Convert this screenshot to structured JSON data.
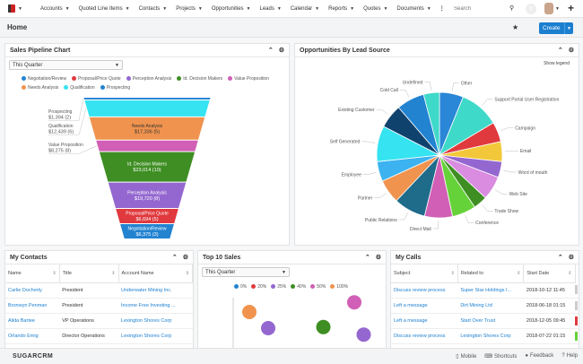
{
  "nav": {
    "items": [
      "Accounts",
      "Quoted Line Items",
      "Contacts",
      "Projects",
      "Opportunities",
      "Leads",
      "Calendar",
      "Reports",
      "Quotes",
      "Documents"
    ],
    "more": "⋮",
    "search_placeholder": "Search",
    "notifications": "0",
    "add": "+"
  },
  "header": {
    "title": "Home",
    "create": "Create"
  },
  "pipeline": {
    "title": "Sales Pipeline Chart",
    "filter": "This Quarter",
    "legend": [
      {
        "label": "Negotiation/Review",
        "color": "#2283d1"
      },
      {
        "label": "Proposal/Price Quote",
        "color": "#e0393e"
      },
      {
        "label": "Perception Analysis",
        "color": "#9467d0"
      },
      {
        "label": "Id. Decision Makers",
        "color": "#3e8e23"
      },
      {
        "label": "Value Proposition",
        "color": "#d05fb5"
      },
      {
        "label": "Needs Analysis",
        "color": "#f0934e"
      },
      {
        "label": "Qualification",
        "color": "#36e3f0"
      },
      {
        "label": "Prospecting",
        "color": "#2283d1"
      }
    ]
  },
  "opps": {
    "title": "Opportunities By Lead Source",
    "show_legend": "Show legend"
  },
  "chart_data": [
    {
      "type": "funnel",
      "stages": [
        {
          "label": "Prospecting",
          "amount": "$1,394 (2)",
          "value": 1394,
          "count": 2,
          "color": "#2a86d6",
          "outside": true
        },
        {
          "label": "Qualification",
          "amount": "$12,439 (6)",
          "value": 12439,
          "count": 6,
          "color": "#36e3f0",
          "outside": true
        },
        {
          "label": "Needs Analysis",
          "amount": "$17,336 (5)",
          "value": 17336,
          "count": 5,
          "color": "#f0934e",
          "outside": false
        },
        {
          "label": "Value Proposition",
          "amount": "$8,275 (8)",
          "value": 8275,
          "count": 8,
          "color": "#d05fb5",
          "outside": true
        },
        {
          "label": "Id. Decision Makers",
          "amount": "$23,014 (10)",
          "value": 23014,
          "count": 10,
          "color": "#3e8e23",
          "outside": false
        },
        {
          "label": "Perception Analysis",
          "amount": "$19,720 (8)",
          "value": 19720,
          "count": 8,
          "color": "#9467d0",
          "outside": false
        },
        {
          "label": "Proposal/Price Quote",
          "amount": "$6,694 (5)",
          "value": 6694,
          "count": 5,
          "color": "#e0393e",
          "outside": false
        },
        {
          "label": "Negotiation/Review",
          "amount": "$6,375 (3)",
          "value": 6375,
          "count": 3,
          "color": "#2283d1",
          "outside": false
        }
      ]
    },
    {
      "type": "pie",
      "slices": [
        {
          "label": "Other",
          "value": 6,
          "color": "#2a86d6"
        },
        {
          "label": "Support Portal User Registration",
          "value": 10,
          "color": "#3fd9c9"
        },
        {
          "label": "Campaign",
          "value": 5,
          "color": "#e0393e"
        },
        {
          "label": "Email",
          "value": 5,
          "color": "#f2c83a"
        },
        {
          "label": "Word of mouth",
          "value": 4,
          "color": "#9467d0"
        },
        {
          "label": "Web Site",
          "value": 6,
          "color": "#d98ce0"
        },
        {
          "label": "Trade Show",
          "value": 3.5,
          "color": "#3e8e23"
        },
        {
          "label": "Conference",
          "value": 6,
          "color": "#66d23a"
        },
        {
          "label": "Direct Mail",
          "value": 7,
          "color": "#d05fb5"
        },
        {
          "label": "Public Relations",
          "value": 8,
          "color": "#1f6b8a"
        },
        {
          "label": "Partner",
          "value": 6,
          "color": "#f0934e"
        },
        {
          "label": "Employee",
          "value": 5,
          "color": "#3cb3f0"
        },
        {
          "label": "Self Generated",
          "value": 9,
          "color": "#36e3f0"
        },
        {
          "label": "Existing Customer",
          "value": 6,
          "color": "#10426e"
        },
        {
          "label": "Cold Call",
          "value": 7,
          "color": "#2283d1"
        },
        {
          "label": "Undefined",
          "value": 4,
          "color": "#3fd9c9"
        }
      ]
    },
    {
      "type": "scatter",
      "legend": [
        {
          "label": "0%",
          "color": "#2283d1"
        },
        {
          "label": "20%",
          "color": "#e0393e"
        },
        {
          "label": "25%",
          "color": "#9467d0"
        },
        {
          "label": "40%",
          "color": "#3e8e23"
        },
        {
          "label": "50%",
          "color": "#d05fb5"
        },
        {
          "label": "100%",
          "color": "#f0934e"
        }
      ],
      "points": [
        {
          "x": 8,
          "y": 70,
          "prob": "100%"
        },
        {
          "x": 22,
          "y": 40,
          "prob": "25%"
        },
        {
          "x": 63,
          "y": 42,
          "prob": "40%"
        },
        {
          "x": 86,
          "y": 88,
          "prob": "50%"
        },
        {
          "x": 93,
          "y": 28,
          "prob": "25%"
        }
      ]
    }
  ],
  "contacts": {
    "title": "My Contacts",
    "columns": [
      "Name",
      "Title",
      "Account Name"
    ],
    "rows": [
      [
        "Carlie Docherty",
        "President",
        "Underwater Mining Inc."
      ],
      [
        "Bronwyn Penman",
        "President",
        "Income Free Investing ..."
      ],
      [
        "Alida Bartee",
        "VP Operations",
        "Lexington Shores Corp"
      ],
      [
        "Orlando Emig",
        "Director Operations",
        "Lexington Shores Corp"
      ]
    ]
  },
  "top10": {
    "title": "Top 10 Sales",
    "filter": "This Quarter"
  },
  "calls": {
    "title": "My Calls",
    "columns": [
      "Subject",
      "Related to",
      "Start Date"
    ],
    "rows": [
      [
        "Discuss review process",
        "Super Star Holdings I...",
        "2018-10-12 11:45"
      ],
      [
        "Left a message",
        "Dirt Mining Ltd",
        "2018-06-18 01:15"
      ],
      [
        "Left a message",
        "Start Over Trust",
        "2018-12-05 09:45"
      ],
      [
        "Discuss review process",
        "Lexington Shores Corp",
        "2018-07-22 01:15"
      ]
    ],
    "status_colors": [
      "#ccc",
      "#ccc",
      "#e0393e",
      "#66d23a"
    ]
  },
  "footer": {
    "brand": "SUGARCRM",
    "mobile": "Mobile",
    "shortcuts": "Shortcuts",
    "feedback": "Feedback",
    "help": "Help"
  }
}
